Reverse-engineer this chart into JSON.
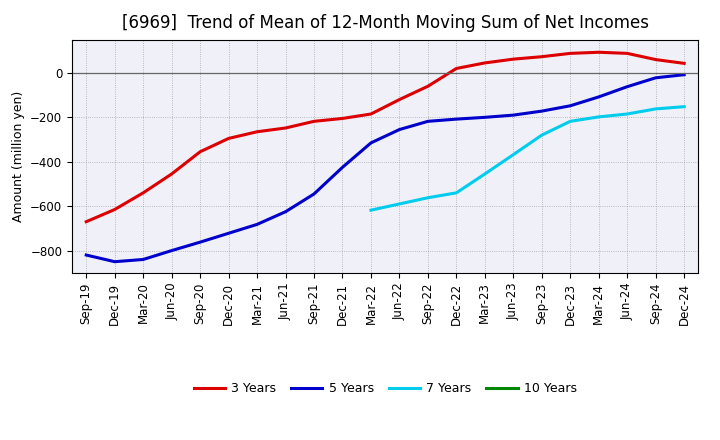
{
  "title": "[6969]  Trend of Mean of 12-Month Moving Sum of Net Incomes",
  "ylabel": "Amount (million yen)",
  "background_color": "#ffffff",
  "plot_background": "#f0f0f8",
  "grid_color": "#888888",
  "ylim": [
    -900,
    150
  ],
  "yticks": [
    -800,
    -600,
    -400,
    -200,
    0
  ],
  "x_labels": [
    "Sep-19",
    "Dec-19",
    "Mar-20",
    "Jun-20",
    "Sep-20",
    "Dec-20",
    "Mar-21",
    "Jun-21",
    "Sep-21",
    "Dec-21",
    "Mar-22",
    "Jun-22",
    "Sep-22",
    "Dec-22",
    "Mar-23",
    "Jun-23",
    "Sep-23",
    "Dec-23",
    "Mar-24",
    "Jun-24",
    "Sep-24",
    "Dec-24"
  ],
  "series": [
    {
      "label": "3 Years",
      "color": "#dd0000",
      "data_x": [
        0,
        1,
        2,
        3,
        4,
        5,
        6,
        7,
        8,
        9,
        10,
        11,
        12,
        13,
        14,
        15,
        16,
        17,
        18,
        19,
        20,
        21
      ],
      "data_y": [
        -670,
        -615,
        -540,
        -455,
        -355,
        -295,
        -265,
        -248,
        -218,
        -205,
        -185,
        -120,
        -60,
        20,
        45,
        62,
        73,
        88,
        93,
        88,
        60,
        43
      ]
    },
    {
      "label": "5 Years",
      "color": "#0000cc",
      "data_x": [
        0,
        1,
        2,
        3,
        4,
        5,
        6,
        7,
        8,
        9,
        10,
        11,
        12,
        13,
        14,
        15,
        16,
        17,
        18,
        19,
        20,
        21
      ],
      "data_y": [
        -820,
        -850,
        -840,
        -800,
        -762,
        -722,
        -682,
        -625,
        -545,
        -425,
        -315,
        -255,
        -218,
        -208,
        -200,
        -190,
        -172,
        -148,
        -108,
        -62,
        -22,
        -8
      ]
    },
    {
      "label": "7 Years",
      "color": "#00ccee",
      "data_x": [
        10,
        11,
        12,
        13,
        14,
        15,
        16,
        17,
        18,
        19,
        20,
        21
      ],
      "data_y": [
        -618,
        -590,
        -562,
        -540,
        -455,
        -368,
        -280,
        -218,
        -198,
        -185,
        -162,
        -152
      ]
    },
    {
      "label": "10 Years",
      "color": "#008800",
      "data_x": [],
      "data_y": []
    }
  ],
  "line_width": 2.2,
  "title_fontsize": 12,
  "label_fontsize": 9,
  "tick_fontsize": 8.5
}
